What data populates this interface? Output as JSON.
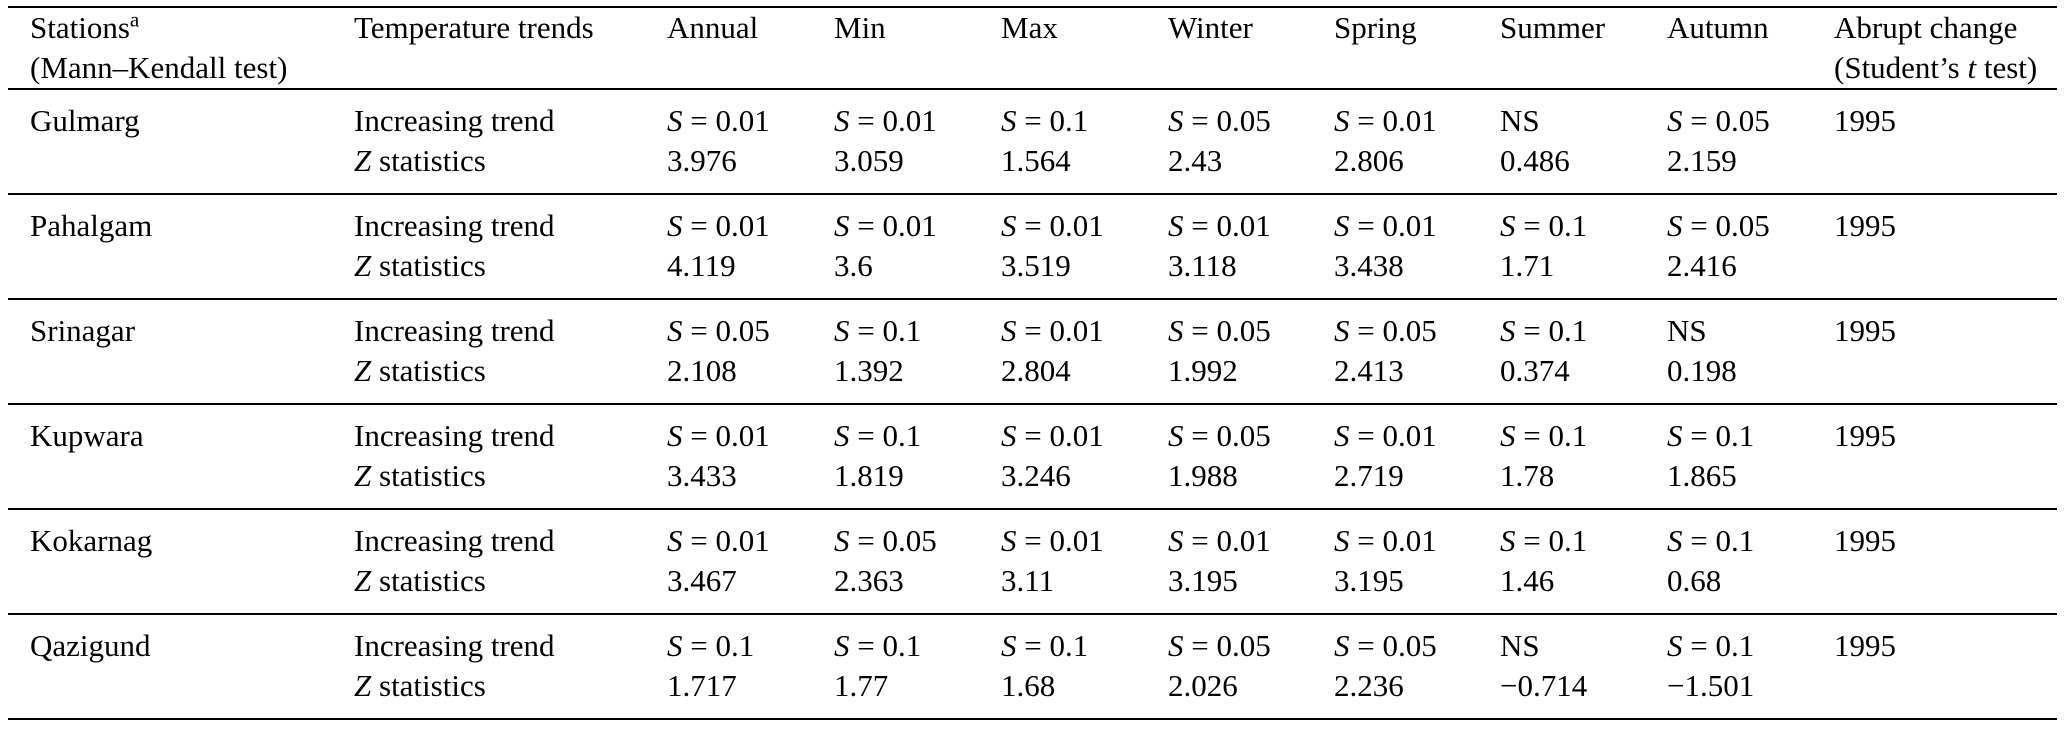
{
  "colors": {
    "text": "#000000",
    "background": "#ffffff",
    "rule": "#000000"
  },
  "table": {
    "header": {
      "stations": "Stations",
      "stations_footnote": "a",
      "stations_sub": "(Mann–Kendall test)",
      "trends": "Temperature trends",
      "seasons": [
        "Annual",
        "Min",
        "Max",
        "Winter",
        "Spring",
        "Summer",
        "Autumn"
      ],
      "abrupt": "Abrupt change",
      "abrupt_sub_pre": "(Student’s ",
      "abrupt_sub_it": "t",
      "abrupt_sub_post": " test)"
    },
    "rows": [
      {
        "station": "Gulmarg",
        "trend_label": "Increasing trend",
        "z_label": "Z statistics",
        "sig": [
          "S = 0.01",
          "S = 0.01",
          "S = 0.1",
          "S = 0.05",
          "S = 0.01",
          "NS",
          "S = 0.05"
        ],
        "z": [
          "3.976",
          "3.059",
          "1.564",
          "2.43",
          "2.806",
          "0.486",
          "2.159"
        ],
        "year": "1995"
      },
      {
        "station": "Pahalgam",
        "trend_label": "Increasing trend",
        "z_label": "Z statistics",
        "sig": [
          "S = 0.01",
          "S = 0.01",
          "S = 0.01",
          "S = 0.01",
          "S = 0.01",
          "S = 0.1",
          "S = 0.05"
        ],
        "z": [
          "4.119",
          "3.6",
          "3.519",
          "3.118",
          "3.438",
          "1.71",
          "2.416"
        ],
        "year": "1995"
      },
      {
        "station": "Srinagar",
        "trend_label": "Increasing trend",
        "z_label": "Z statistics",
        "sig": [
          "S = 0.05",
          "S = 0.1",
          "S = 0.01",
          "S = 0.05",
          "S = 0.05",
          "S = 0.1",
          "NS"
        ],
        "z": [
          "2.108",
          "1.392",
          "2.804",
          "1.992",
          "2.413",
          "0.374",
          "0.198"
        ],
        "year": "1995"
      },
      {
        "station": "Kupwara",
        "trend_label": "Increasing trend",
        "z_label": "Z statistics",
        "sig": [
          "S = 0.01",
          "S = 0.1",
          "S = 0.01",
          "S = 0.05",
          "S = 0.01",
          "S = 0.1",
          "S = 0.1"
        ],
        "z": [
          "3.433",
          "1.819",
          "3.246",
          "1.988",
          "2.719",
          "1.78",
          "1.865"
        ],
        "year": "1995"
      },
      {
        "station": "Kokarnag",
        "trend_label": "Increasing trend",
        "z_label": "Z statistics",
        "sig": [
          "S = 0.01",
          "S = 0.05",
          "S = 0.01",
          "S = 0.01",
          "S = 0.01",
          "S = 0.1",
          "S = 0.1"
        ],
        "z": [
          "3.467",
          "2.363",
          "3.11",
          "3.195",
          "3.195",
          "1.46",
          "0.68"
        ],
        "year": "1995"
      },
      {
        "station": "Qazigund",
        "trend_label": "Increasing trend",
        "z_label": "Z statistics",
        "sig": [
          "S = 0.1",
          "S = 0.1",
          "S = 0.1",
          "S = 0.05",
          "S = 0.05",
          "NS",
          "S = 0.1"
        ],
        "z": [
          "1.717",
          "1.77",
          "1.68",
          "2.026",
          "2.236",
          "−0.714",
          "−1.501"
        ],
        "year": "1995"
      }
    ]
  }
}
